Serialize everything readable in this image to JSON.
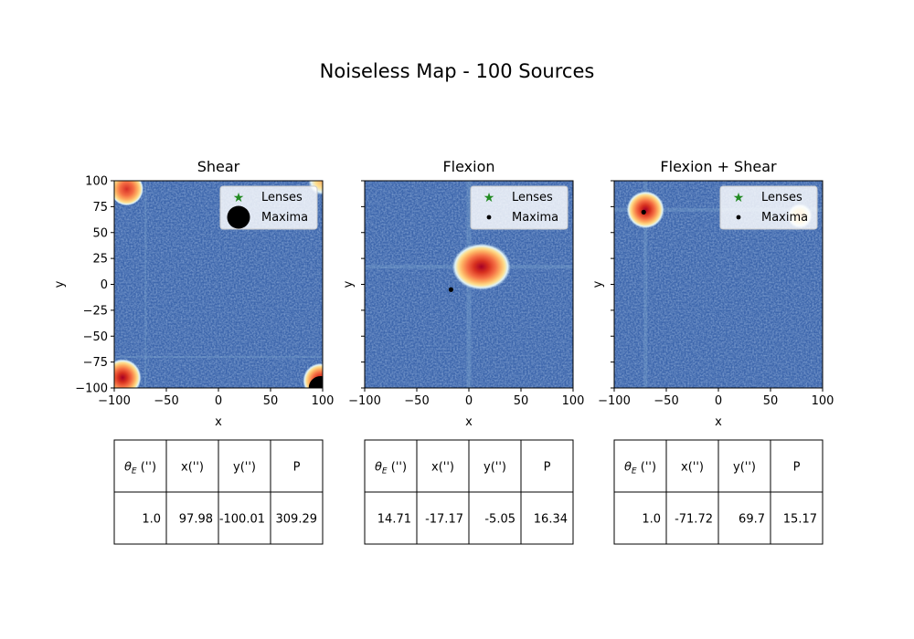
{
  "figure": {
    "title": "Noiseless Map - 100 Sources"
  },
  "colors": {
    "lens_marker": "#228B22",
    "maxima_marker": "#000000",
    "map_background": "#3d66ac",
    "map_peak": "#c81e1e",
    "table_border": "#000000"
  },
  "chart_data": [
    {
      "type": "heatmap",
      "title": "Shear",
      "xlabel": "x",
      "ylabel": "y",
      "xlim": [
        -100,
        100
      ],
      "ylim": [
        -100,
        100
      ],
      "xticks": [
        "−100",
        "−50",
        "0",
        "50",
        "100"
      ],
      "yticks": [
        "100",
        "75",
        "50",
        "25",
        "0",
        "−25",
        "−50",
        "−75",
        "−100"
      ],
      "show_yticklabels": true,
      "legend": {
        "placement": "upper right",
        "entries": [
          "Lenses",
          "Maxima"
        ]
      },
      "legend_maxima_size": "large",
      "hot_spots": [
        {
          "x": -88,
          "y": 92,
          "r": 16,
          "intensity": 0.7
        },
        {
          "x": 100,
          "y": 100,
          "r": 14,
          "intensity": 0.45
        },
        {
          "x": -92,
          "y": -90,
          "r": 18,
          "intensity": 0.85
        },
        {
          "x": 98,
          "y": -93,
          "r": 17,
          "intensity": 0.85
        }
      ],
      "lenses": [],
      "maxima": [
        {
          "x": 97.98,
          "y": -100.01,
          "size": "large"
        }
      ],
      "table": {
        "headers": [
          "θ_E ('')",
          "x('')",
          "y('')",
          "P"
        ],
        "row": [
          "1.0",
          "97.98",
          "-100.01",
          "309.29"
        ]
      }
    },
    {
      "type": "heatmap",
      "title": "Flexion",
      "xlabel": "x",
      "ylabel": "y",
      "xlim": [
        -100,
        100
      ],
      "ylim": [
        -100,
        100
      ],
      "xticks": [
        "−100",
        "−50",
        "0",
        "50",
        "100"
      ],
      "yticks": [],
      "show_yticklabels": false,
      "legend": {
        "placement": "upper right",
        "entries": [
          "Lenses",
          "Maxima"
        ]
      },
      "legend_maxima_size": "small",
      "hot_spots": [
        {
          "x": 12,
          "y": 17,
          "r": 28,
          "intensity": 1.0
        }
      ],
      "lenses": [],
      "maxima": [
        {
          "x": -17.17,
          "y": -5.05,
          "size": "small"
        }
      ],
      "table": {
        "headers": [
          "θ_E ('')",
          "x('')",
          "y('')",
          "P"
        ],
        "row": [
          "14.71",
          "-17.17",
          "-5.05",
          "16.34"
        ]
      }
    },
    {
      "type": "heatmap",
      "title": "Flexion + Shear",
      "xlabel": "x",
      "ylabel": "y",
      "xlim": [
        -100,
        100
      ],
      "ylim": [
        -100,
        100
      ],
      "xticks": [
        "−100",
        "−50",
        "0",
        "50",
        "100"
      ],
      "yticks": [],
      "show_yticklabels": false,
      "legend": {
        "placement": "upper right",
        "entries": [
          "Lenses",
          "Maxima"
        ]
      },
      "legend_maxima_size": "small",
      "hot_spots": [
        {
          "x": -70,
          "y": 72,
          "r": 18,
          "intensity": 1.0
        },
        {
          "x": 78,
          "y": 66,
          "r": 12,
          "intensity": 0.25
        }
      ],
      "lenses": [],
      "maxima": [
        {
          "x": -71.72,
          "y": 69.7,
          "size": "small"
        }
      ],
      "table": {
        "headers": [
          "θ_E ('')",
          "x('')",
          "y('')",
          "P"
        ],
        "row": [
          "1.0",
          "-71.72",
          "69.7",
          "15.17"
        ]
      }
    }
  ]
}
